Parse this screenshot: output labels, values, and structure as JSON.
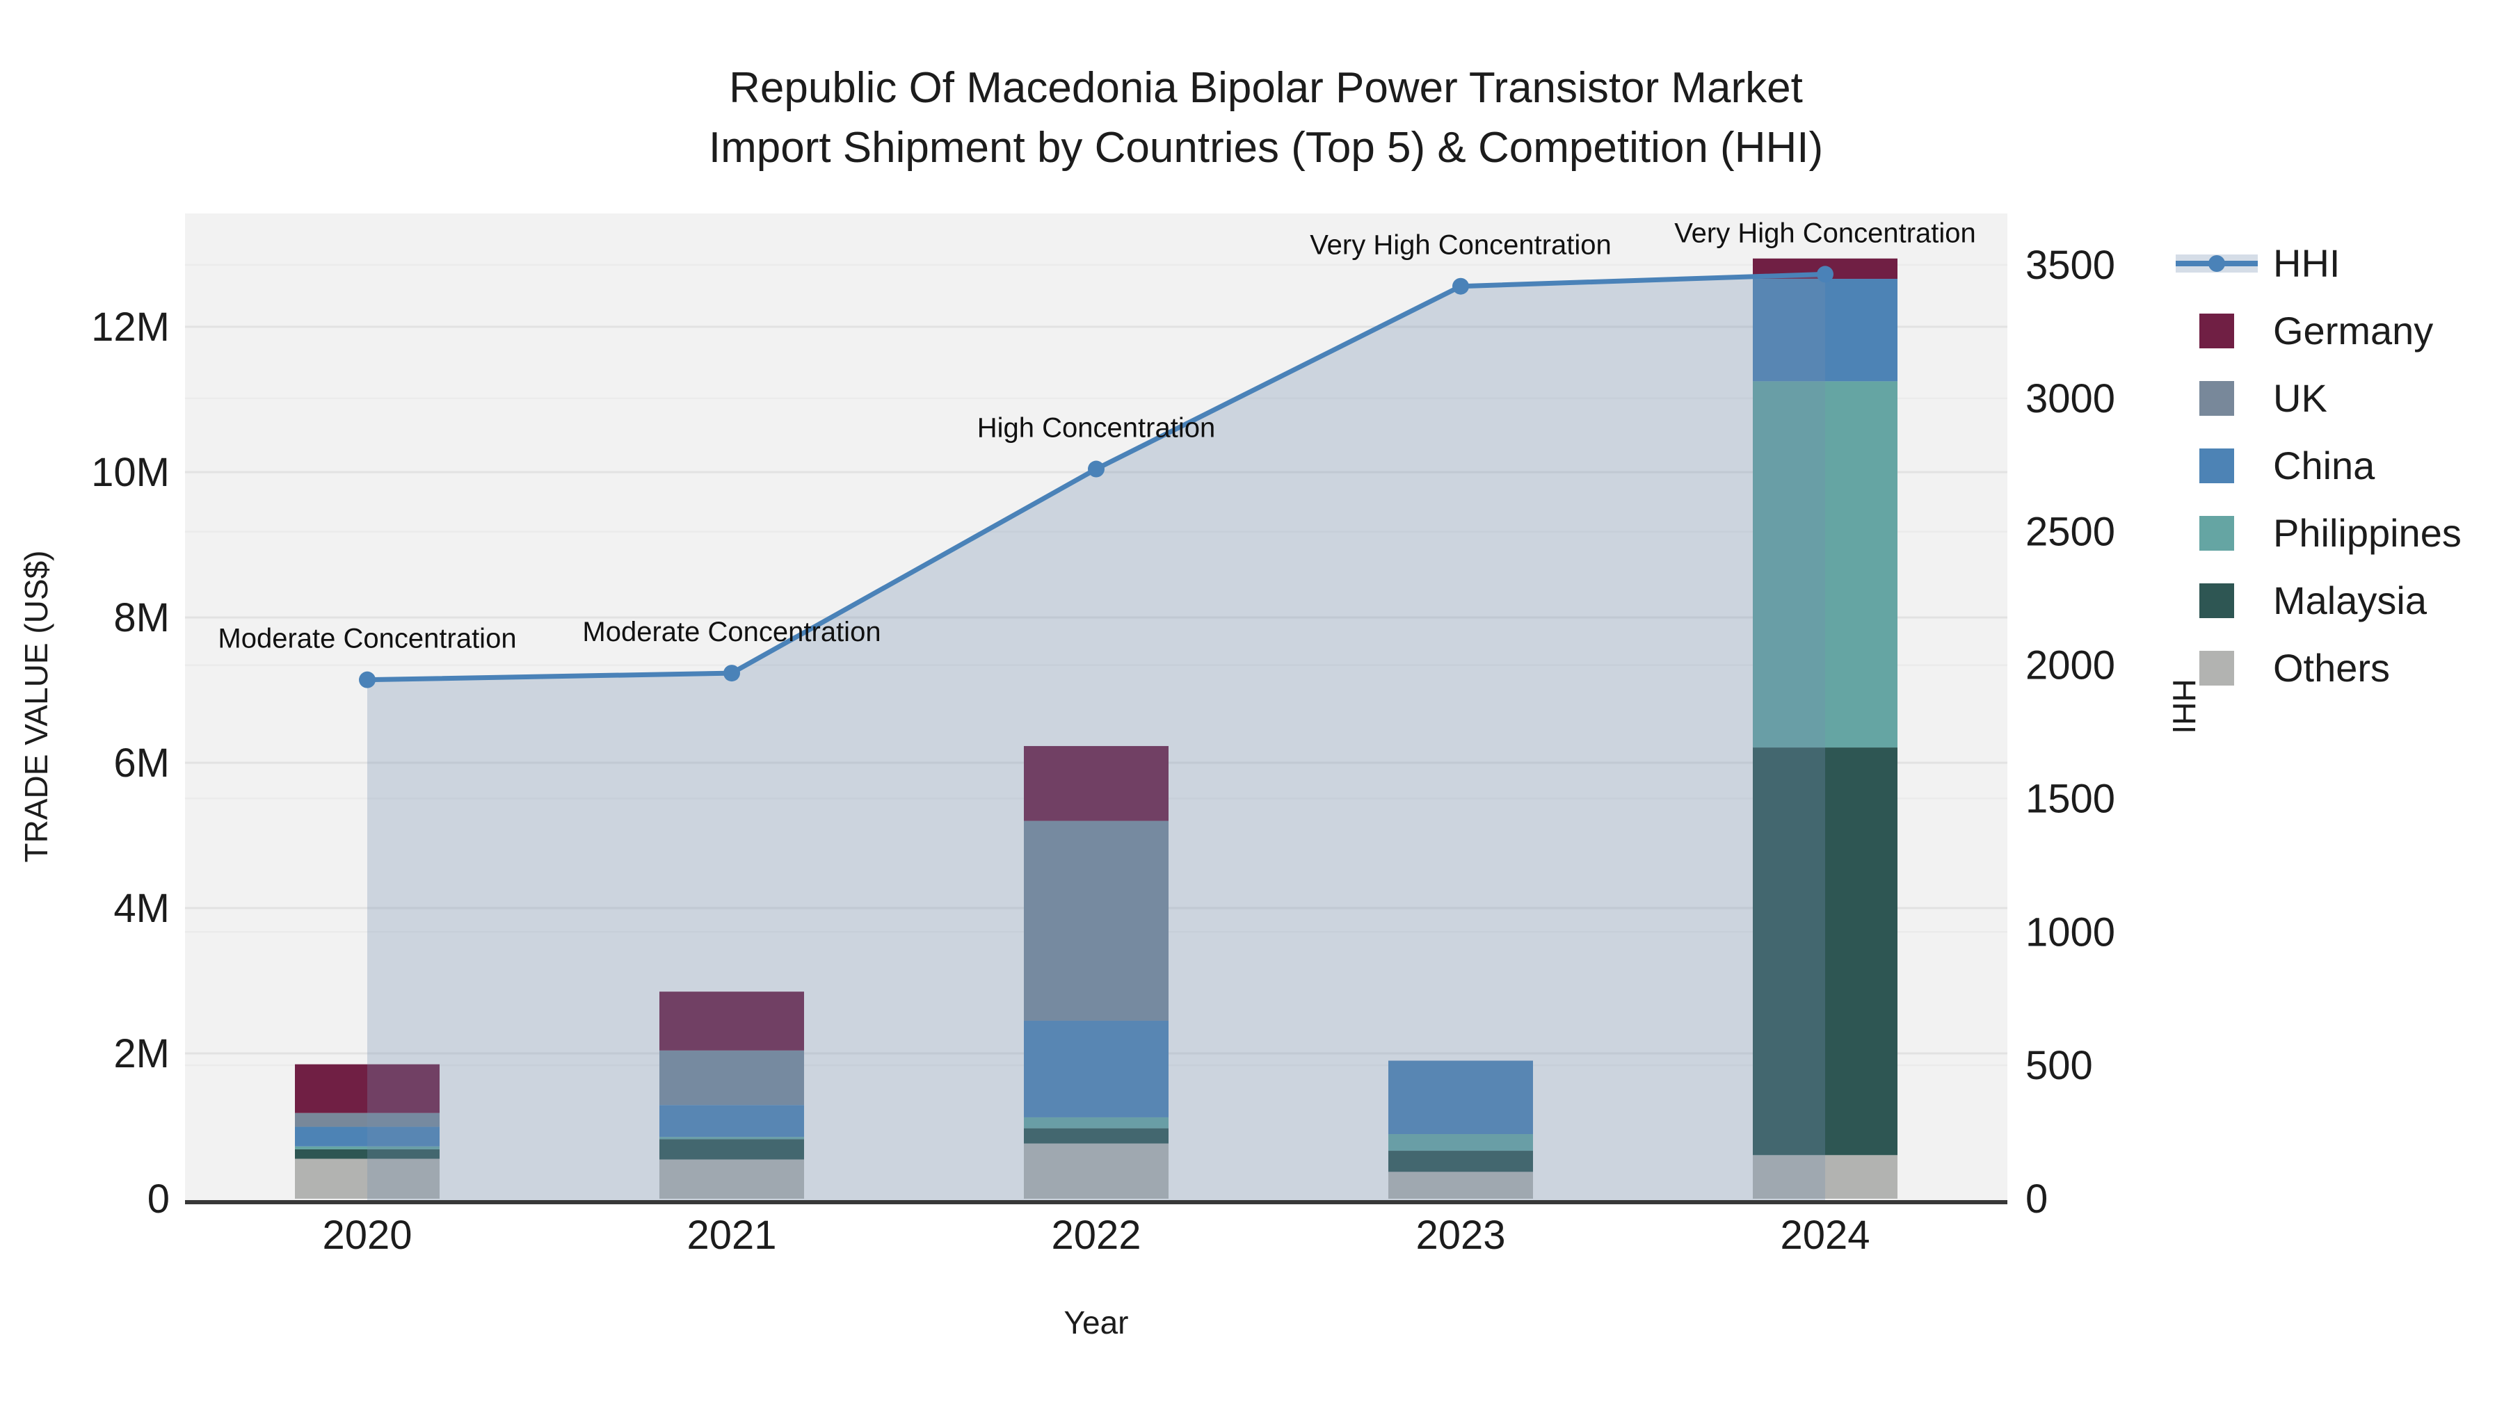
{
  "title": {
    "line1": "Republic Of Macedonia Bipolar Power Transistor Market",
    "line2": "Import Shipment by Countries (Top 5) & Competition (HHI)"
  },
  "y_left_axis": {
    "title": "TRADE VALUE (US$)",
    "tick_labels": [
      "0",
      "2M",
      "4M",
      "6M",
      "8M",
      "10M",
      "12M"
    ],
    "tick_values": [
      0,
      2000000,
      4000000,
      6000000,
      8000000,
      10000000,
      12000000
    ]
  },
  "y_right_axis": {
    "title": "HHI",
    "tick_labels": [
      "0",
      "500",
      "1000",
      "1500",
      "2000",
      "2500",
      "3000",
      "3500"
    ],
    "tick_values": [
      0,
      500,
      1000,
      1500,
      2000,
      2500,
      3000,
      3500
    ]
  },
  "x_axis": {
    "title": "Year",
    "categories": [
      "2020",
      "2021",
      "2022",
      "2023",
      "2024"
    ]
  },
  "legend": {
    "items": [
      {
        "label": "HHI",
        "type": "line",
        "color_key": "hhi_line"
      },
      {
        "label": "Germany",
        "type": "box",
        "color_key": "germany"
      },
      {
        "label": "UK",
        "type": "box",
        "color_key": "uk"
      },
      {
        "label": "China",
        "type": "box",
        "color_key": "china"
      },
      {
        "label": "Philippines",
        "type": "box",
        "color_key": "philippines"
      },
      {
        "label": "Malaysia",
        "type": "box",
        "color_key": "malaysia"
      },
      {
        "label": "Others",
        "type": "box",
        "color_key": "others"
      }
    ]
  },
  "chart_data": {
    "type": "bar+line",
    "title": "Republic Of Macedonia Bipolar Power Transistor Market Import Shipment by Countries (Top 5) & Competition (HHI)",
    "xlabel": "Year",
    "ylabel_left": "TRADE VALUE (US$)",
    "ylabel_right": "HHI",
    "categories": [
      "2020",
      "2021",
      "2022",
      "2023",
      "2024"
    ],
    "stacked_bar_series": [
      {
        "name": "Germany",
        "values": [
          670000,
          810000,
          1030000,
          0,
          280000
        ]
      },
      {
        "name": "UK",
        "values": [
          190000,
          750000,
          2750000,
          0,
          0
        ]
      },
      {
        "name": "China",
        "values": [
          270000,
          440000,
          1330000,
          1010000,
          1410000
        ]
      },
      {
        "name": "Philippines",
        "values": [
          40000,
          30000,
          150000,
          230000,
          5040000
        ]
      },
      {
        "name": "Malaysia",
        "values": [
          130000,
          280000,
          210000,
          290000,
          5610000
        ]
      },
      {
        "name": "Others",
        "values": [
          550000,
          540000,
          760000,
          370000,
          600000
        ]
      }
    ],
    "stack_order_bottom_to_top": [
      "Others",
      "Malaysia",
      "Philippines",
      "China",
      "UK",
      "Germany"
    ],
    "bar_totals": [
      1850000,
      2850000,
      6230000,
      1900000,
      12940000
    ],
    "line_series": {
      "name": "HHI",
      "axis": "right",
      "values": [
        1945,
        1970,
        2735,
        3420,
        3465
      ],
      "area_fill": true
    },
    "annotations": [
      {
        "category": "2020",
        "text": "Moderate Concentration"
      },
      {
        "category": "2021",
        "text": "Moderate Concentration"
      },
      {
        "category": "2022",
        "text": "High Concentration"
      },
      {
        "category": "2023",
        "text": "Very High Concentration"
      },
      {
        "category": "2024",
        "text": "Very High Concentration"
      }
    ],
    "y_left_range": [
      0,
      13560000
    ],
    "y_right_range": [
      0,
      3700
    ],
    "grid": true,
    "legend_position": "right"
  },
  "colors": {
    "germany": "#701f44",
    "uk": "#78889a",
    "china": "#4d83b5",
    "philippines": "#65a5a3",
    "malaysia": "#2e5653",
    "others": "#b2b3b1",
    "hhi_line": "#4a82b8",
    "hhi_fill": "rgba(115,142,175,0.30)",
    "hhi_legend_band": "#d5dde7",
    "plot_bg": "#f2f2f2",
    "grid_left": "#e2e2e2",
    "grid_right": "#ebebeb",
    "axis_line": "#383838",
    "text": "#1c1c1c"
  }
}
